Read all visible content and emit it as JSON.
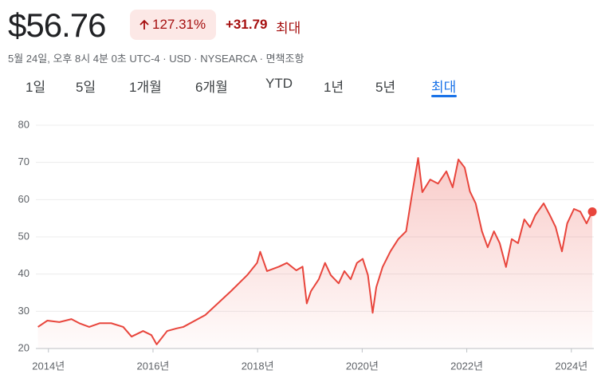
{
  "header": {
    "price": "$56.76",
    "change_pct": "127.31%",
    "change_abs": "+31.79",
    "period": "최대",
    "meta": "5월 24일, 오후 8시 4분 0초 UTC-4 · USD · NYSEARCA · 면책조항"
  },
  "tabs": [
    "1일",
    "5일",
    "1개월",
    "6개월",
    "YTD",
    "1년",
    "5년",
    "최대"
  ],
  "chart_data": {
    "type": "line",
    "x": [
      2013.8,
      2013.98,
      2014.21,
      2014.44,
      2014.59,
      2014.78,
      2014.98,
      2015.2,
      2015.43,
      2015.59,
      2015.81,
      2015.97,
      2016.07,
      2016.27,
      2016.45,
      2016.58,
      2017.0,
      2017.49,
      2017.8,
      2017.99,
      2018.05,
      2018.18,
      2018.41,
      2018.56,
      2018.74,
      2018.86,
      2018.94,
      2019.02,
      2019.17,
      2019.29,
      2019.4,
      2019.55,
      2019.66,
      2019.78,
      2019.9,
      2020.01,
      2020.11,
      2020.2,
      2020.27,
      2020.39,
      2020.54,
      2020.69,
      2020.84,
      2020.95,
      2021.07,
      2021.15,
      2021.3,
      2021.45,
      2021.61,
      2021.73,
      2021.84,
      2021.96,
      2022.06,
      2022.17,
      2022.29,
      2022.4,
      2022.52,
      2022.63,
      2022.75,
      2022.86,
      2022.98,
      2023.1,
      2023.21,
      2023.31,
      2023.47,
      2023.59,
      2023.7,
      2023.82,
      2023.92,
      2024.05,
      2024.17,
      2024.29,
      2024.4
    ],
    "series": [
      {
        "color": "#e8453c",
        "values": [
          25.8,
          27.5,
          27.1,
          27.9,
          26.8,
          25.8,
          26.8,
          26.8,
          25.8,
          23.2,
          24.7,
          23.6,
          21.1,
          24.7,
          25.4,
          25.8,
          29.0,
          35.4,
          39.7,
          43.0,
          46.0,
          40.8,
          42.0,
          43.0,
          41.0,
          42.0,
          32.1,
          35.4,
          38.6,
          43.0,
          39.7,
          37.5,
          40.8,
          38.6,
          43.0,
          44.1,
          39.7,
          29.6,
          36.5,
          41.9,
          46.1,
          49.4,
          51.5,
          61.2,
          71.2,
          62.0,
          65.4,
          64.3,
          67.6,
          63.3,
          70.8,
          68.6,
          62.2,
          59.0,
          51.5,
          47.2,
          51.5,
          48.3,
          41.9,
          49.4,
          48.3,
          54.7,
          52.6,
          55.8,
          59.0,
          55.8,
          52.6,
          46.1,
          53.6,
          57.5,
          56.8,
          53.6,
          56.76
        ]
      }
    ],
    "xlim": [
      2013.76,
      2024.43
    ],
    "xticks": [
      {
        "value": 2014,
        "label": "2014년"
      },
      {
        "value": 2016,
        "label": "2016년"
      },
      {
        "value": 2018,
        "label": "2018년"
      },
      {
        "value": 2020,
        "label": "2020년"
      },
      {
        "value": 2022,
        "label": "2022년"
      },
      {
        "value": 2024,
        "label": "2024년"
      }
    ],
    "ylim": [
      20,
      80
    ],
    "yticks": [
      20,
      30,
      40,
      50,
      60,
      70,
      80
    ],
    "grid": true
  }
}
